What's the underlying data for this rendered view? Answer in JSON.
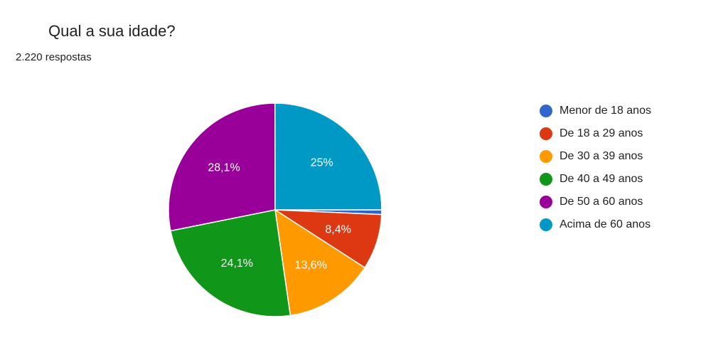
{
  "chart_data": {
    "type": "pie",
    "title": "Qual a sua idade?",
    "subtitle": "2.220 respostas",
    "categories": [
      "Menor de 18 anos",
      "De 18 a 29 anos",
      "De 30 a 39 anos",
      "De 40 a 49 anos",
      "De 50 a 60 anos",
      "Acima de 60 anos"
    ],
    "values": [
      0.7,
      8.4,
      13.6,
      24.1,
      28.1,
      25
    ],
    "value_labels": [
      null,
      "8,4%",
      "13,6%",
      "24,1%",
      "28,1%",
      "25%"
    ],
    "colors": [
      "#3366cc",
      "#dc3912",
      "#ff9900",
      "#109618",
      "#990099",
      "#0099c6"
    ],
    "legend": "right"
  }
}
